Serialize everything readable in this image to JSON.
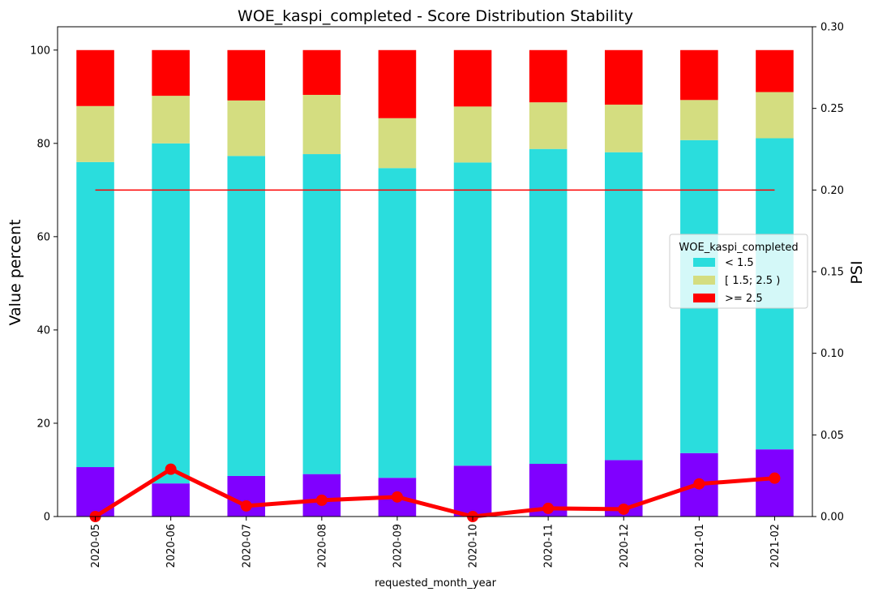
{
  "chart_data": {
    "type": "bar",
    "title": "WOE_kaspi_completed  - Score Distribution Stability",
    "xlabel": "requested_month_year",
    "ylabel": "Value percent",
    "y2label": "PSI",
    "ylim": [
      0,
      105
    ],
    "y2lim": [
      0,
      0.3
    ],
    "yticks": [
      0,
      20,
      40,
      60,
      80,
      100
    ],
    "y2ticks": [
      "0.00",
      "0.05",
      "0.10",
      "0.15",
      "0.20",
      "0.25",
      "0.30"
    ],
    "categories": [
      "2020-05",
      "2020-06",
      "2020-07",
      "2020-08",
      "2020-09",
      "2020-10",
      "2020-11",
      "2020-12",
      "2021-01",
      "2021-02"
    ],
    "series": [
      {
        "values": [
          10.6,
          7.1,
          8.7,
          9.1,
          8.3,
          10.9,
          11.3,
          12.1,
          13.6,
          14.4
        ],
        "color": "#8000ff"
      },
      {
        "name": "< 1.5",
        "values": [
          65.4,
          72.9,
          68.6,
          68.6,
          66.4,
          65.0,
          67.5,
          66.0,
          67.1,
          66.7
        ],
        "color": "#2adddd"
      },
      {
        "name": "[ 1.5; 2.5 )",
        "values": [
          12.0,
          10.2,
          11.9,
          12.7,
          10.7,
          12.0,
          10.0,
          10.2,
          8.6,
          9.9
        ],
        "color": "#d4dd80"
      },
      {
        "name": ">= 2.5",
        "values": [
          12.0,
          9.8,
          10.8,
          9.6,
          14.6,
          12.1,
          11.2,
          11.7,
          10.7,
          9.0
        ],
        "color": "#ff0000"
      }
    ],
    "psi": {
      "values": [
        0.0,
        0.029,
        0.0065,
        0.01,
        0.012,
        0.0,
        0.005,
        0.0045,
        0.02,
        0.0235
      ],
      "color": "#ff0000"
    },
    "threshold": {
      "value": 0.2,
      "color": "#ff0000"
    },
    "legend": {
      "title": "WOE_kaspi_completed",
      "placement": "center-right"
    }
  }
}
